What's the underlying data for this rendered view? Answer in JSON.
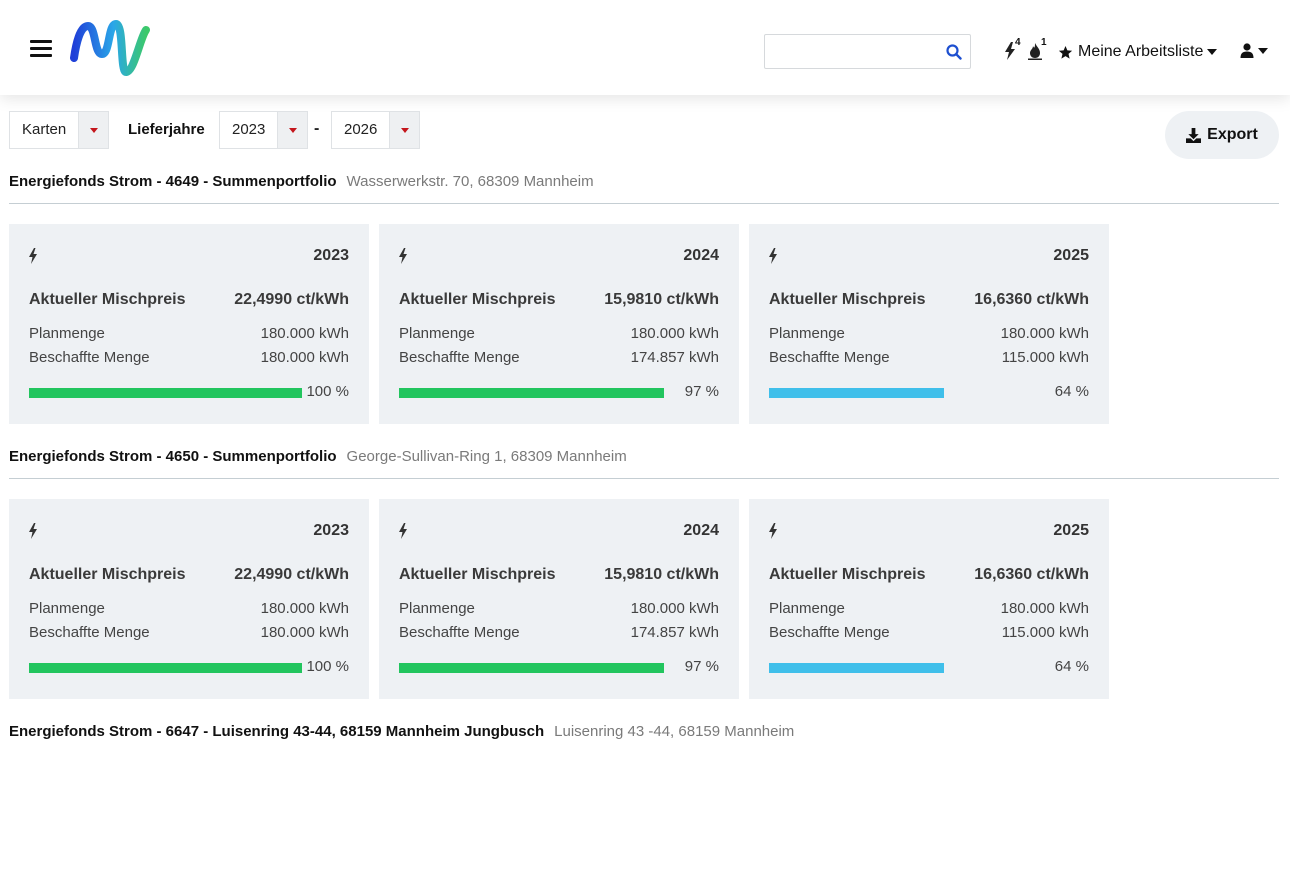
{
  "header": {
    "search": {
      "value": "",
      "placeholder": ""
    },
    "notifications": {
      "power_count": "4",
      "gas_count": "1"
    },
    "watchlist_label": "Meine Arbeitsliste"
  },
  "toolbar": {
    "view_select": "Karten",
    "lieferjahre_label": "Lieferjahre",
    "year_from": "2023",
    "year_to": "2026",
    "separator": "-",
    "export_label": "Export"
  },
  "colors": {
    "full": "#22c55e",
    "partial": "#3fbfea",
    "card_bg": "#eef1f4"
  },
  "portfolios": [
    {
      "name": "Energiefonds Strom - 4649 - Summenportfolio",
      "address": "Wasserwerkstr. 70, 68309 Mannheim",
      "cards": [
        {
          "year": "2023",
          "mix_label": "Aktueller Mischpreis",
          "mix_value": "22,4990 ct/kWh",
          "plan_label": "Planmenge",
          "plan_value": "180.000 kWh",
          "besch_label": "Beschaffte Menge",
          "besch_value": "180.000 kWh",
          "percent_label": "100 %",
          "progress": 100
        },
        {
          "year": "2024",
          "mix_label": "Aktueller Mischpreis",
          "mix_value": "15,9810 ct/kWh",
          "plan_label": "Planmenge",
          "plan_value": "180.000 kWh",
          "besch_label": "Beschaffte Menge",
          "besch_value": "174.857 kWh",
          "percent_label": "97 %",
          "progress": 97
        },
        {
          "year": "2025",
          "mix_label": "Aktueller Mischpreis",
          "mix_value": "16,6360 ct/kWh",
          "plan_label": "Planmenge",
          "plan_value": "180.000 kWh",
          "besch_label": "Beschaffte Menge",
          "besch_value": "115.000 kWh",
          "percent_label": "64 %",
          "progress": 64
        }
      ]
    },
    {
      "name": "Energiefonds Strom - 4650 - Summenportfolio",
      "address": "George-Sullivan-Ring 1, 68309 Mannheim",
      "cards": [
        {
          "year": "2023",
          "mix_label": "Aktueller Mischpreis",
          "mix_value": "22,4990 ct/kWh",
          "plan_label": "Planmenge",
          "plan_value": "180.000 kWh",
          "besch_label": "Beschaffte Menge",
          "besch_value": "180.000 kWh",
          "percent_label": "100 %",
          "progress": 100
        },
        {
          "year": "2024",
          "mix_label": "Aktueller Mischpreis",
          "mix_value": "15,9810 ct/kWh",
          "plan_label": "Planmenge",
          "plan_value": "180.000 kWh",
          "besch_label": "Beschaffte Menge",
          "besch_value": "174.857 kWh",
          "percent_label": "97 %",
          "progress": 97
        },
        {
          "year": "2025",
          "mix_label": "Aktueller Mischpreis",
          "mix_value": "16,6360 ct/kWh",
          "plan_label": "Planmenge",
          "plan_value": "180.000 kWh",
          "besch_label": "Beschaffte Menge",
          "besch_value": "115.000 kWh",
          "percent_label": "64 %",
          "progress": 64
        }
      ]
    },
    {
      "name": "Energiefonds Strom - 6647 - Luisenring 43-44, 68159 Mannheim Jungbusch",
      "address": "Luisenring 43 -44, 68159 Mannheim",
      "cards": []
    }
  ]
}
